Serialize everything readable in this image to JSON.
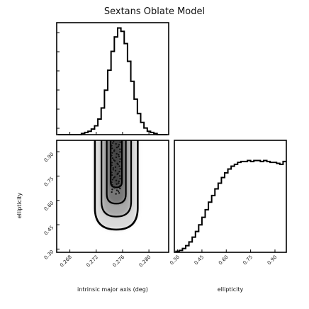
{
  "chart_data": {
    "type": "corner",
    "title": "Sextans Oblate Model",
    "panels": [
      {
        "type": "histogram",
        "position": "top-left",
        "xlim": [
          0.266,
          0.283
        ],
        "bins_x": [
          0.2665,
          0.267,
          0.2675,
          0.268,
          0.2685,
          0.269,
          0.2695,
          0.27,
          0.2705,
          0.271,
          0.2715,
          0.272,
          0.2725,
          0.273,
          0.2735,
          0.274,
          0.2745,
          0.275,
          0.2755,
          0.276,
          0.2765,
          0.277,
          0.2775,
          0.278,
          0.2785,
          0.279,
          0.2795,
          0.28,
          0.2805,
          0.281,
          0.2815,
          0.282,
          0.2825
        ],
        "counts": [
          0,
          0,
          0,
          0,
          0,
          0,
          0,
          1,
          2,
          3,
          5,
          8,
          14,
          24,
          40,
          58,
          75,
          88,
          96,
          93,
          82,
          66,
          48,
          32,
          19,
          11,
          6,
          3,
          2,
          1,
          0,
          0,
          0
        ]
      },
      {
        "type": "density-contour",
        "position": "bottom-left",
        "x_param": "intrinsic major axis (deg)",
        "y_param": "ellipticity",
        "xlim": [
          0.266,
          0.283
        ],
        "ylim": [
          0.28,
          0.97
        ],
        "center": [
          0.275,
          0.82
        ],
        "levels": [
          {
            "name": "outer",
            "x": [
              0.2718,
              0.2783
            ],
            "y_min": 0.42
          },
          {
            "name": "mid",
            "x": [
              0.2728,
              0.2773
            ],
            "y_min": 0.5
          },
          {
            "name": "inner",
            "x": [
              0.2736,
              0.2765
            ],
            "y_min": 0.58
          },
          {
            "name": "core",
            "x": [
              0.2742,
              0.2759
            ],
            "y_min": 0.68
          }
        ]
      },
      {
        "type": "histogram",
        "position": "bottom-right",
        "xlim": [
          0.28,
          0.97
        ],
        "bins_x": [
          0.3,
          0.32,
          0.34,
          0.36,
          0.38,
          0.4,
          0.42,
          0.44,
          0.46,
          0.48,
          0.5,
          0.52,
          0.54,
          0.56,
          0.58,
          0.6,
          0.62,
          0.64,
          0.66,
          0.68,
          0.7,
          0.72,
          0.74,
          0.76,
          0.78,
          0.8,
          0.82,
          0.84,
          0.86,
          0.88,
          0.9,
          0.92,
          0.94,
          0.96
        ],
        "counts": [
          1,
          2,
          4,
          7,
          11,
          16,
          22,
          29,
          37,
          45,
          53,
          60,
          67,
          73,
          79,
          84,
          88,
          91,
          93,
          95,
          96,
          96,
          97,
          96,
          97,
          97,
          96,
          97,
          96,
          95,
          95,
          94,
          93,
          96
        ]
      }
    ],
    "xticks_left": [
      "0.268",
      "0.272",
      "0.276",
      "0.280"
    ],
    "xticks_left_values": [
      0.268,
      0.272,
      0.276,
      0.28
    ],
    "yticks_left": [
      "0.30",
      "0.45",
      "0.60",
      "0.75",
      "0.90"
    ],
    "yticks_left_values": [
      0.3,
      0.45,
      0.6,
      0.75,
      0.9
    ],
    "xticks_right": [
      "0.30",
      "0.45",
      "0.60",
      "0.75",
      "0.90"
    ],
    "xticks_right_values": [
      0.3,
      0.45,
      0.6,
      0.75,
      0.9
    ],
    "xlabel_left": "intrinsic major axis (deg)",
    "xlabel_right": "ellipticity",
    "ylabel_left": "ellipticity",
    "grid": false
  }
}
